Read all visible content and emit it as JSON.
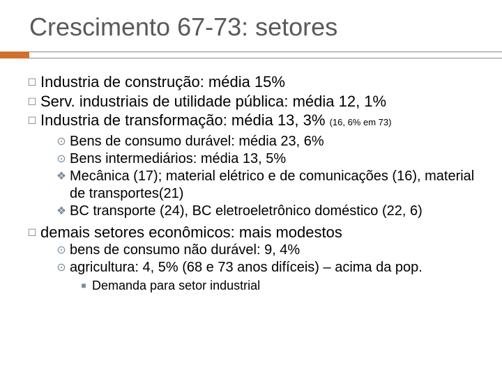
{
  "title": "Crescimento 67-73: setores",
  "colors": {
    "accent": "#d16f2f",
    "title_text": "#595959",
    "bullet": "#7a8a99",
    "text": "#000000",
    "background": "#ffffff",
    "rule": "#888888"
  },
  "typography": {
    "title_size_pt": 27,
    "body_size_pt": 17,
    "sub_size_pt": 15,
    "sub2_size_pt": 14,
    "superscript_size_pt": 10,
    "font_family": "Arial"
  },
  "items_l1": {
    "a": "Industria de construção: média 15%",
    "b": "Serv. industriais de utilidade pública: média 12, 1%",
    "c": "Industria de transformação: média 13, 3% ",
    "c_sub": "(16, 6% em 73)",
    "d": "demais setores econômicos: mais modestos"
  },
  "items_l2_c": {
    "a": "Bens de consumo durável: média 23, 6%",
    "b": "Bens intermediários: média 13, 5%",
    "c": "Mecânica (17); material elétrico e de comunicações (16), material de transportes(21)",
    "d": "BC transporte (24), BC eletroeletrônico doméstico (22, 6)"
  },
  "items_l2_d": {
    "a": "bens de consumo não durável: 9, 4%",
    "b": "agricultura: 4, 5% (68 e 73 anos difíceis) – acima da pop."
  },
  "items_l3": {
    "a": "Demanda para setor industrial"
  },
  "bullets": {
    "l1": "◻",
    "l2_target": "⊙",
    "l2_diamond": "❖",
    "l3": "■"
  }
}
